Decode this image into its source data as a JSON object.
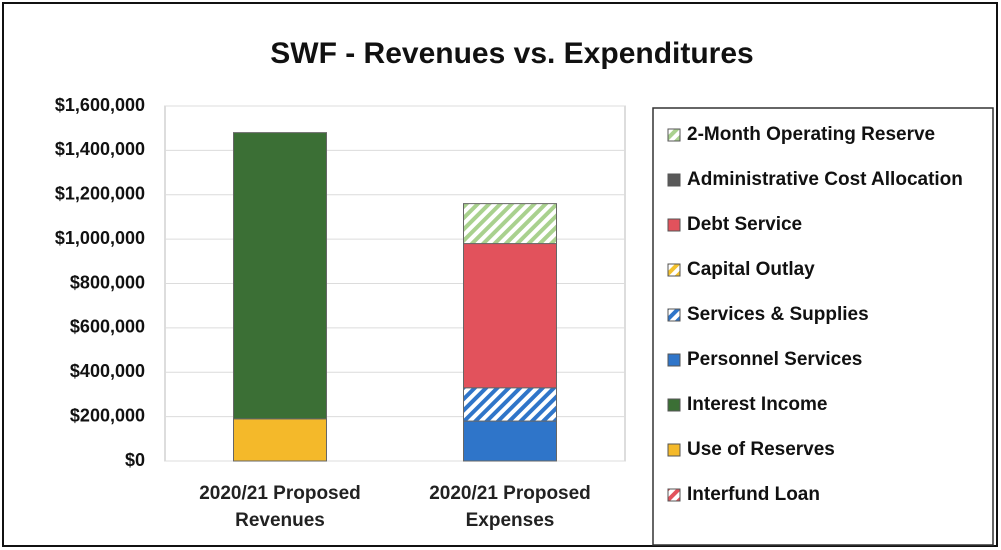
{
  "chart_data": {
    "type": "stacked_bar",
    "title": "SWF - Revenues vs. Expenditures",
    "categories": [
      "2020/21 Proposed Revenues",
      "2020/21 Proposed Expenses"
    ],
    "series": [
      {
        "name": "2-Month Operating Reserve",
        "color": "#a9d18e",
        "hatched": true,
        "values": [
          0,
          180000
        ]
      },
      {
        "name": "Administrative Cost Allocation",
        "color": "#595959",
        "hatched": false,
        "values": [
          0,
          0
        ]
      },
      {
        "name": "Debt Service",
        "color": "#e2525c",
        "hatched": false,
        "values": [
          0,
          650000
        ]
      },
      {
        "name": "Capital Outlay",
        "color": "#f2c12e",
        "hatched": true,
        "values": [
          0,
          0
        ]
      },
      {
        "name": "Services & Supplies",
        "color": "#2f75c9",
        "hatched": true,
        "values": [
          0,
          150000
        ]
      },
      {
        "name": "Personnel Services",
        "color": "#2f75c9",
        "hatched": false,
        "values": [
          0,
          180000
        ]
      },
      {
        "name": "Interest Income",
        "color": "#3b6f35",
        "hatched": false,
        "values": [
          1290000,
          0
        ]
      },
      {
        "name": "Use of Reserves",
        "color": "#f4b92a",
        "hatched": false,
        "values": [
          190000,
          0
        ]
      },
      {
        "name": "Interfund Loan",
        "color": "#e2525c",
        "hatched": true,
        "values": [
          0,
          0
        ]
      }
    ],
    "ylim": [
      0,
      1600000
    ],
    "yticks": [
      {
        "value": 0,
        "label": "$0"
      },
      {
        "value": 200000,
        "label": "$200,000"
      },
      {
        "value": 400000,
        "label": "$400,000"
      },
      {
        "value": 600000,
        "label": "$600,000"
      },
      {
        "value": 800000,
        "label": "$800,000"
      },
      {
        "value": 1000000,
        "label": "$1,000,000"
      },
      {
        "value": 1200000,
        "label": "$1,200,000"
      },
      {
        "value": 1400000,
        "label": "$1,400,000"
      },
      {
        "value": 1600000,
        "label": "$1,600,000"
      }
    ],
    "grid": true,
    "legend": "right"
  }
}
